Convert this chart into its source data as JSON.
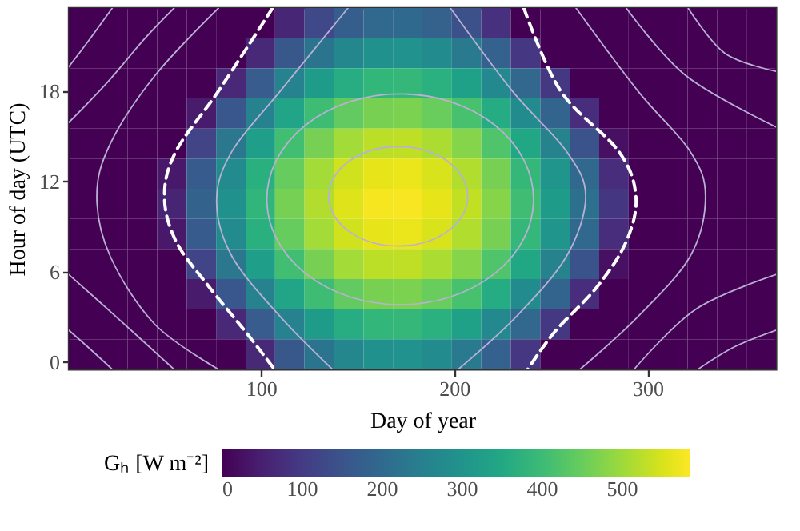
{
  "chart_data": {
    "type": "heatmap",
    "xlabel": "Day of year",
    "ylabel": "Hour of day (UTC)",
    "clabel": "Gₕ [W m⁻²]",
    "x": [
      8.1,
      23.4,
      38.6,
      53.9,
      69.1,
      84.4,
      99.6,
      114.9,
      130.1,
      145.4,
      160.6,
      175.9,
      191.1,
      206.4,
      221.6,
      236.9,
      252.1,
      267.4,
      282.6,
      297.9,
      313.1,
      328.4,
      343.6,
      358.9
    ],
    "y": [
      22.5,
      20.5,
      18.5,
      16.5,
      14.5,
      12.5,
      10.5,
      8.5,
      6.5,
      4.5,
      2.5,
      0.5
    ],
    "cells": [
      [
        0,
        0,
        0,
        0,
        0,
        0,
        0,
        61,
        127,
        171,
        195,
        198,
        180,
        140,
        81,
        0,
        0,
        0,
        0,
        0,
        0,
        0,
        0,
        0
      ],
      [
        0,
        0,
        0,
        0,
        0,
        0,
        66,
        159,
        224,
        269,
        293,
        296,
        278,
        238,
        178,
        92,
        0,
        0,
        0,
        0,
        0,
        0,
        0,
        0
      ],
      [
        0,
        0,
        0,
        0,
        0,
        64,
        167,
        257,
        319,
        362,
        386,
        388,
        371,
        333,
        275,
        192,
        93,
        0,
        0,
        0,
        0,
        0,
        0,
        0
      ],
      [
        0,
        0,
        0,
        0,
        40,
        158,
        257,
        342,
        402,
        443,
        465,
        468,
        450,
        415,
        360,
        280,
        186,
        73,
        0,
        0,
        0,
        0,
        0,
        0
      ],
      [
        0,
        0,
        0,
        0,
        117,
        231,
        326,
        407,
        464,
        504,
        525,
        527,
        511,
        477,
        424,
        348,
        258,
        149,
        23,
        0,
        0,
        0,
        0,
        0
      ],
      [
        0,
        0,
        0,
        37,
        166,
        276,
        369,
        448,
        504,
        542,
        563,
        566,
        550,
        516,
        464,
        390,
        302,
        197,
        73,
        0,
        0,
        0,
        0,
        0
      ],
      [
        0,
        0,
        0,
        56,
        183,
        292,
        383,
        462,
        517,
        556,
        576,
        579,
        563,
        530,
        478,
        405,
        318,
        213,
        91,
        0,
        0,
        0,
        0,
        0
      ],
      [
        0,
        0,
        0,
        37,
        166,
        276,
        369,
        448,
        504,
        542,
        563,
        566,
        550,
        516,
        464,
        390,
        302,
        197,
        73,
        0,
        0,
        0,
        0,
        0
      ],
      [
        0,
        0,
        0,
        0,
        117,
        231,
        326,
        407,
        464,
        504,
        525,
        527,
        511,
        477,
        424,
        348,
        258,
        149,
        23,
        0,
        0,
        0,
        0,
        0
      ],
      [
        0,
        0,
        0,
        0,
        40,
        158,
        257,
        342,
        402,
        443,
        465,
        468,
        450,
        415,
        360,
        280,
        186,
        73,
        0,
        0,
        0,
        0,
        0,
        0
      ],
      [
        0,
        0,
        0,
        0,
        0,
        64,
        167,
        257,
        319,
        362,
        386,
        388,
        371,
        333,
        275,
        192,
        93,
        0,
        0,
        0,
        0,
        0,
        0,
        0
      ],
      [
        0,
        0,
        0,
        0,
        0,
        0,
        66,
        159,
        224,
        269,
        293,
        296,
        278,
        238,
        178,
        92,
        0,
        0,
        0,
        0,
        0,
        0,
        0,
        0
      ]
    ],
    "xlim": [
      0.5,
      366.5
    ],
    "xticks": [
      100,
      200,
      300
    ],
    "ylim": [
      -0.5,
      23.5
    ],
    "yticks": [
      0,
      6,
      12,
      18
    ],
    "clim": [
      0,
      584
    ],
    "cticks": [
      0,
      100,
      200,
      300,
      400,
      500
    ],
    "series": [
      {
        "type": "line",
        "color": "#b9b1d4",
        "x": [
          0.5,
          10,
          23
        ],
        "values": [
          19.6,
          21.2,
          23.5
        ]
      },
      {
        "type": "line",
        "color": "#b9b1d4",
        "x": [
          0.5,
          20,
          40,
          55
        ],
        "values": [
          15.9,
          18.5,
          21.5,
          23.5
        ]
      },
      {
        "type": "line",
        "color": "#b9b1d4",
        "x": [
          78,
          45,
          22,
          15,
          22,
          45,
          78
        ],
        "values": [
          23.5,
          19,
          14.5,
          11,
          7,
          2.5,
          -0.5
        ]
      },
      {
        "type": "line",
        "color": "#b9b1d4",
        "x": [
          0.5,
          25,
          55
        ],
        "values": [
          5.8,
          3,
          -0.5
        ]
      },
      {
        "type": "line",
        "color": "#b9b1d4",
        "x": [
          0.5,
          12,
          23
        ],
        "values": [
          2.1,
          0.8,
          -0.5
        ]
      },
      {
        "type": "line",
        "color": "#ffffff",
        "line_style": "dashed",
        "x": [
          106,
          78,
          56,
          50,
          56,
          73,
          92,
          107
        ],
        "values": [
          23.5,
          18,
          14,
          11,
          8,
          5,
          2,
          -0.5
        ]
      },
      {
        "type": "line",
        "color": "#b9b1d4",
        "x": [
          145,
          110,
          85,
          77,
          85,
          110,
          137
        ],
        "values": [
          23.5,
          18,
          14,
          10.7,
          7,
          3,
          -0.5
        ]
      },
      {
        "type": "line",
        "color": "#b9b1d4",
        "x": [
          198,
          230,
          258,
          268,
          258,
          232,
          202
        ],
        "values": [
          23.5,
          18,
          14,
          11,
          7,
          3,
          -0.5
        ]
      },
      {
        "type": "line",
        "color": "#ffffff",
        "line_style": "dashed",
        "x": [
          236,
          255,
          285,
          294,
          289,
          274,
          252,
          238
        ],
        "values": [
          23.5,
          18,
          14,
          11,
          8,
          5,
          2,
          -0.5
        ]
      },
      {
        "type": "line",
        "color": "#b9b1d4",
        "x": [
          263,
          295,
          322,
          330,
          322,
          295,
          265
        ],
        "values": [
          23.5,
          18,
          14,
          11,
          7,
          3,
          -0.5
        ]
      },
      {
        "type": "line",
        "color": "#b9b1d4",
        "x": [
          289,
          320,
          366.5
        ],
        "values": [
          23.5,
          19,
          15.6
        ]
      },
      {
        "type": "line",
        "color": "#b9b1d4",
        "x": [
          321,
          340,
          366.5
        ],
        "values": [
          23.5,
          20.5,
          19.3
        ]
      },
      {
        "type": "line",
        "color": "#b9b1d4",
        "x": [
          293,
          325,
          366.5
        ],
        "values": [
          -0.5,
          3.5,
          5.8
        ]
      },
      {
        "type": "line",
        "color": "#b9b1d4",
        "x": [
          326,
          345,
          366.5
        ],
        "values": [
          -0.5,
          1,
          2.1
        ]
      }
    ]
  }
}
